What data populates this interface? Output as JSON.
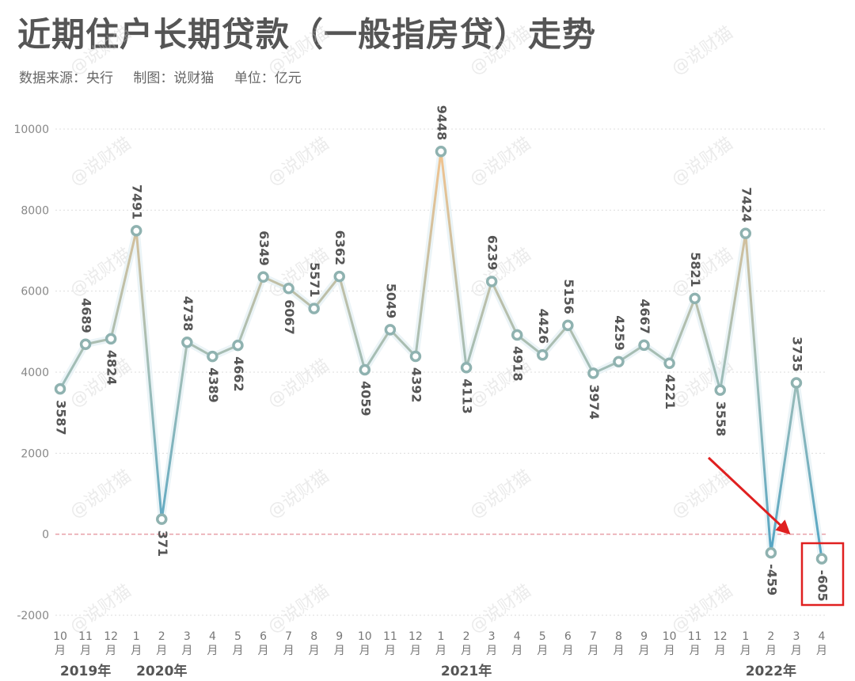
{
  "title": "近期住户长期贷款（一般指房贷）走势",
  "subtitle": {
    "source": "数据来源：央行",
    "maker": "制图：说财猫",
    "unit": "单位：亿元"
  },
  "watermark": "@说财猫",
  "chart_data": {
    "type": "line",
    "ylim": [
      -2000,
      10000
    ],
    "yticks": [
      -2000,
      0,
      2000,
      4000,
      6000,
      8000,
      10000
    ],
    "grid": true,
    "categories": [
      "2019-10",
      "2019-11",
      "2019-12",
      "2020-01",
      "2020-02",
      "2020-03",
      "2020-04",
      "2020-05",
      "2020-06",
      "2020-07",
      "2020-08",
      "2020-09",
      "2020-10",
      "2020-11",
      "2020-12",
      "2021-01",
      "2021-02",
      "2021-03",
      "2021-04",
      "2021-05",
      "2021-06",
      "2021-07",
      "2021-08",
      "2021-09",
      "2021-10",
      "2021-11",
      "2021-12",
      "2022-01",
      "2022-02",
      "2022-03",
      "2022-04"
    ],
    "month_labels": [
      "10",
      "11",
      "12",
      "1",
      "2",
      "3",
      "4",
      "5",
      "6",
      "7",
      "8",
      "9",
      "10",
      "11",
      "12",
      "1",
      "2",
      "3",
      "4",
      "5",
      "6",
      "7",
      "8",
      "9",
      "10",
      "11",
      "12",
      "1",
      "2",
      "3",
      "4"
    ],
    "month_suffix": "月",
    "year_labels": [
      {
        "text": "2019年",
        "index": 1
      },
      {
        "text": "2020年",
        "index": 4
      },
      {
        "text": "2021年",
        "index": 16
      },
      {
        "text": "2022年",
        "index": 28
      }
    ],
    "values": [
      3587,
      4689,
      4824,
      7491,
      371,
      4738,
      4389,
      4662,
      6349,
      6067,
      5571,
      6362,
      4059,
      5049,
      4392,
      9448,
      4113,
      6239,
      4918,
      4426,
      5156,
      3974,
      4259,
      4667,
      4221,
      5821,
      3558,
      7424,
      -459,
      3735,
      -605
    ],
    "label_positions": [
      "below",
      "above",
      "below",
      "above",
      "below",
      "above",
      "below",
      "below",
      "above",
      "below",
      "above",
      "above",
      "below",
      "above",
      "below",
      "above",
      "below",
      "above",
      "below",
      "above",
      "above",
      "below",
      "above",
      "above",
      "below",
      "above",
      "below",
      "above",
      "below",
      "above",
      "below"
    ],
    "colors": {
      "line_low": "#4da3c6",
      "line_mid": "#9bbcb8",
      "line_high": "#f2c38e",
      "marker": "#8fb2b0",
      "zero_line": "#e8a0a8",
      "highlight": "#e02020"
    },
    "highlight_index": 30,
    "arrow_target_index": 29
  }
}
